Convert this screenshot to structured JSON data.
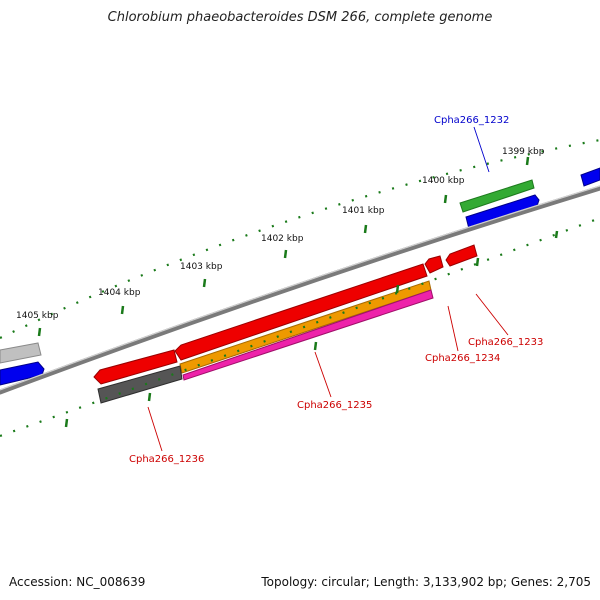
{
  "title": "Chlorobium phaeobacteroides DSM 266, complete genome",
  "accession": "Accession: NC_008639",
  "summary": "Topology: circular; Length: 3,133,902 bp; Genes: 2,705",
  "tick_labels": [
    "1399 kbp",
    "1400 kbp",
    "1401 kbp",
    "1402 kbp",
    "1403 kbp",
    "1404 kbp",
    "1405 kbp"
  ],
  "gene_labels": [
    {
      "text": "Cpha266_1232",
      "color": "#0000cc"
    },
    {
      "text": "Cpha266_1233",
      "color": "#cc0000"
    },
    {
      "text": "Cpha266_1234",
      "color": "#cc0000"
    },
    {
      "text": "Cpha266_1235",
      "color": "#cc0000"
    },
    {
      "text": "Cpha266_1236",
      "color": "#cc0000"
    }
  ],
  "colors": {
    "backbone": "#7a7a7a",
    "tick": "#1a7a1a",
    "forward_green": "#33aa33",
    "forward_blue": "#0000ee",
    "reverse_red": "#ee0000",
    "orange": "#ee9900",
    "magenta": "#ee22aa",
    "dark_gray": "#555555",
    "light_gray": "#c0c0c0"
  }
}
